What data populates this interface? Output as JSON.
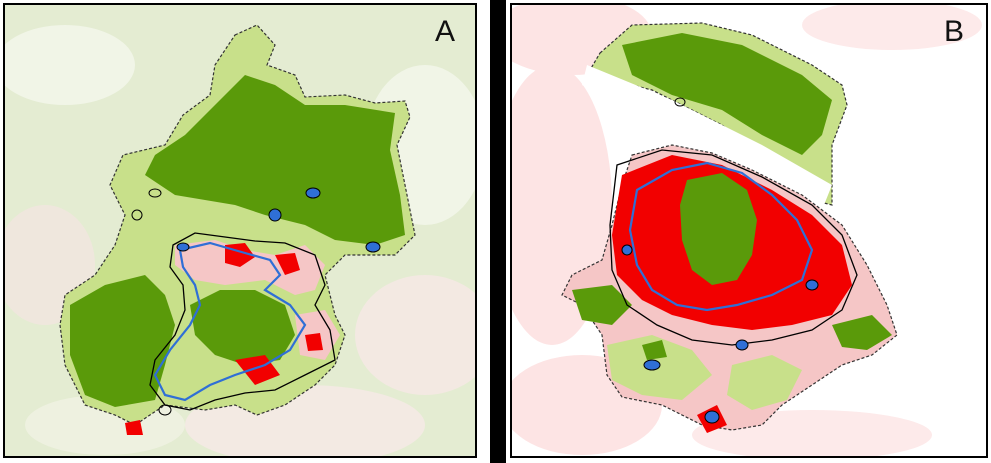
{
  "panels": [
    {
      "id": "A",
      "label": "A"
    },
    {
      "id": "B",
      "label": "B"
    }
  ],
  "colors": {
    "dark_green": "#5a9a0a",
    "light_green": "#c8e08a",
    "pale_green": "#e4ecd2",
    "red": "#f20000",
    "pink": "#f5c6c6",
    "pale_pink": "#fde4e4",
    "urban_boundary_black": "#000000",
    "urban_boundary_blue": "#2f6fd6",
    "region_outline": "#333333",
    "background_white": "#ffffff"
  }
}
